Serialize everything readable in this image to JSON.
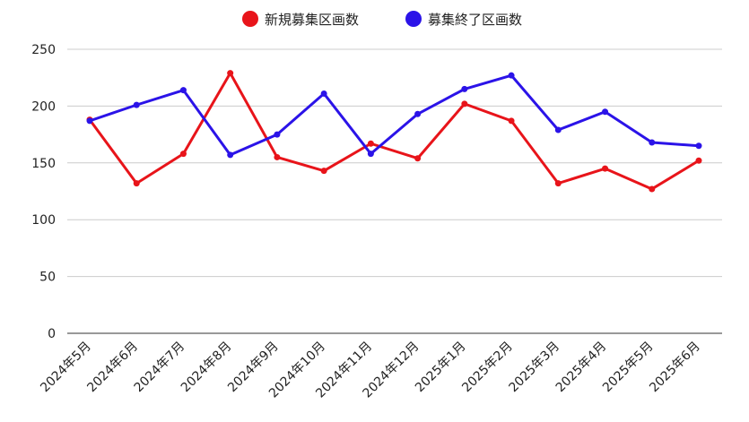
{
  "chart_data": {
    "type": "line",
    "title": "",
    "xlabel": "",
    "ylabel": "",
    "ylim": [
      0,
      250
    ],
    "yticks": [
      0,
      50,
      100,
      150,
      200,
      250
    ],
    "grid": true,
    "legend_position": "top-center",
    "categories": [
      "2024年5月",
      "2024年6月",
      "2024年7月",
      "2024年8月",
      "2024年9月",
      "2024年10月",
      "2024年11月",
      "2024年12月",
      "2025年1月",
      "2025年2月",
      "2025年3月",
      "2025年4月",
      "2025年5月",
      "2025年6月"
    ],
    "series": [
      {
        "name": "新規募集区画数",
        "color": "#e8141a",
        "values": [
          188,
          132,
          158,
          229,
          155,
          143,
          167,
          154,
          202,
          187,
          132,
          145,
          127,
          152
        ]
      },
      {
        "name": "募集終了区画数",
        "color": "#2b13e8",
        "values": [
          187,
          201,
          214,
          157,
          175,
          211,
          158,
          193,
          215,
          227,
          179,
          195,
          168,
          165
        ]
      }
    ]
  }
}
